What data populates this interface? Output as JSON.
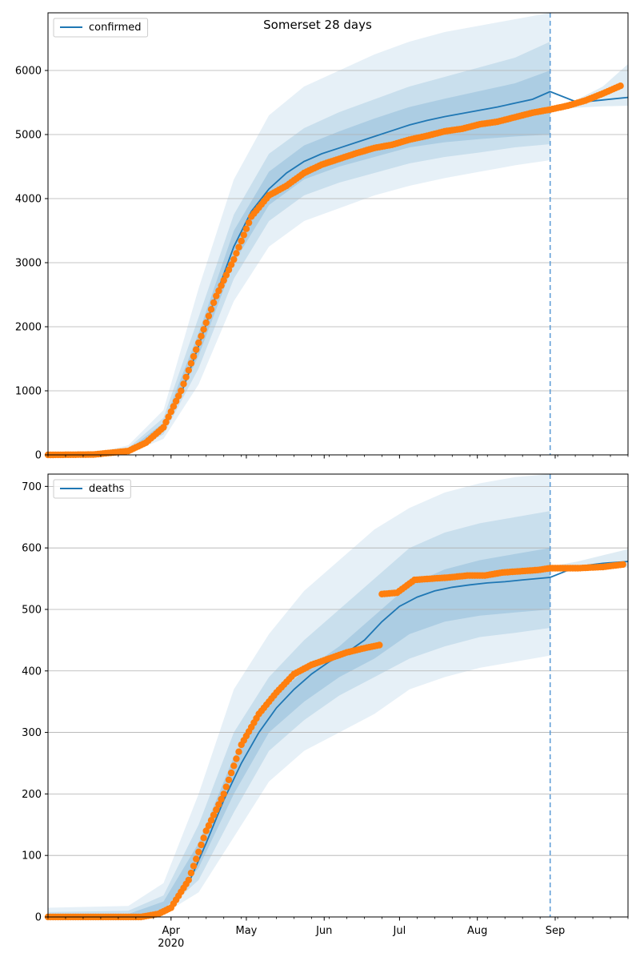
{
  "figure_title": "Somerset 28 days",
  "colors": {
    "model": "#1f77b4",
    "observed": "#ff7f0e",
    "band": "#1f77b4",
    "divider": "#5b9bd5",
    "grid": "#b0b0b0"
  },
  "x_axis": {
    "range": [
      "2020-02-12",
      "2020-09-30"
    ],
    "month_ticks": [
      {
        "date": "2020-04-01",
        "label": "Apr",
        "sublabel": "2020"
      },
      {
        "date": "2020-05-01",
        "label": "May",
        "sublabel": ""
      },
      {
        "date": "2020-06-01",
        "label": "Jun",
        "sublabel": ""
      },
      {
        "date": "2020-07-01",
        "label": "Jul",
        "sublabel": ""
      },
      {
        "date": "2020-08-01",
        "label": "Aug",
        "sublabel": ""
      },
      {
        "date": "2020-09-01",
        "label": "Sep",
        "sublabel": ""
      }
    ],
    "forecast_start": "2020-08-30"
  },
  "chart_data": [
    {
      "type": "line",
      "title": "Somerset 28 days",
      "legend": "confirmed",
      "legend_position": "top-left",
      "grid": "horizontal",
      "ylim": [
        0,
        6900
      ],
      "yticks": [
        0,
        1000,
        2000,
        3000,
        4000,
        5000,
        6000
      ],
      "series": [
        {
          "name": "confirmed",
          "kind": "model",
          "x": [
            "2020-02-12",
            "2020-03-01",
            "2020-03-15",
            "2020-03-22",
            "2020-03-29",
            "2020-04-05",
            "2020-04-12",
            "2020-04-19",
            "2020-04-26",
            "2020-05-03",
            "2020-05-10",
            "2020-05-17",
            "2020-05-24",
            "2020-05-31",
            "2020-06-07",
            "2020-06-14",
            "2020-06-21",
            "2020-06-28",
            "2020-07-05",
            "2020-07-12",
            "2020-07-19",
            "2020-07-26",
            "2020-08-02",
            "2020-08-09",
            "2020-08-16",
            "2020-08-23",
            "2020-08-30",
            "2020-09-10",
            "2020-09-20",
            "2020-09-30"
          ],
          "y": [
            0,
            5,
            60,
            180,
            430,
            950,
            1700,
            2500,
            3250,
            3800,
            4150,
            4400,
            4580,
            4700,
            4790,
            4880,
            4970,
            5060,
            5150,
            5220,
            5280,
            5330,
            5380,
            5430,
            5490,
            5550,
            5670,
            5500,
            5540,
            5580
          ]
        },
        {
          "name": "",
          "kind": "observed",
          "x": [
            "2020-02-12",
            "2020-03-01",
            "2020-03-15",
            "2020-03-22",
            "2020-03-29",
            "2020-04-05",
            "2020-04-12",
            "2020-04-19",
            "2020-04-26",
            "2020-05-03",
            "2020-05-10",
            "2020-05-17",
            "2020-05-24",
            "2020-05-31",
            "2020-06-07",
            "2020-06-14",
            "2020-06-21",
            "2020-06-28",
            "2020-07-05",
            "2020-07-12",
            "2020-07-19",
            "2020-07-26",
            "2020-08-02",
            "2020-08-09",
            "2020-08-16",
            "2020-08-23",
            "2020-08-30",
            "2020-09-06",
            "2020-09-13",
            "2020-09-20",
            "2020-09-27"
          ],
          "y": [
            0,
            5,
            60,
            190,
            430,
            1000,
            1750,
            2480,
            3050,
            3720,
            4050,
            4200,
            4400,
            4530,
            4620,
            4710,
            4790,
            4840,
            4920,
            4980,
            5050,
            5090,
            5160,
            5200,
            5270,
            5340,
            5390,
            5450,
            5530,
            5640,
            5760
          ]
        }
      ],
      "bands": [
        {
          "level": "outer",
          "x": [
            "2020-03-01",
            "2020-03-15",
            "2020-03-29",
            "2020-04-12",
            "2020-04-26",
            "2020-05-10",
            "2020-05-24",
            "2020-06-07",
            "2020-06-21",
            "2020-07-05",
            "2020-07-19",
            "2020-08-02",
            "2020-08-16",
            "2020-08-30"
          ],
          "lower": [
            0,
            20,
            250,
            1100,
            2400,
            3250,
            3650,
            3850,
            4050,
            4200,
            4320,
            4420,
            4520,
            4600
          ],
          "upper": [
            20,
            150,
            700,
            2600,
            4300,
            5300,
            5750,
            6000,
            6250,
            6450,
            6600,
            6700,
            6800,
            6900
          ]
        },
        {
          "level": "middle",
          "x": [
            "2020-03-01",
            "2020-03-15",
            "2020-03-29",
            "2020-04-12",
            "2020-04-26",
            "2020-05-10",
            "2020-05-24",
            "2020-06-07",
            "2020-06-21",
            "2020-07-05",
            "2020-07-19",
            "2020-08-02",
            "2020-08-16",
            "2020-08-30"
          ],
          "lower": [
            0,
            35,
            320,
            1350,
            2750,
            3650,
            4050,
            4250,
            4400,
            4550,
            4650,
            4720,
            4800,
            4850
          ],
          "upper": [
            12,
            110,
            580,
            2150,
            3750,
            4700,
            5100,
            5350,
            5550,
            5750,
            5900,
            6050,
            6200,
            6450
          ]
        },
        {
          "level": "inner",
          "x": [
            "2020-03-01",
            "2020-03-15",
            "2020-03-29",
            "2020-04-12",
            "2020-04-26",
            "2020-05-10",
            "2020-05-24",
            "2020-06-07",
            "2020-06-21",
            "2020-07-05",
            "2020-07-19",
            "2020-08-02",
            "2020-08-16",
            "2020-08-30"
          ],
          "lower": [
            2,
            48,
            380,
            1550,
            3000,
            3900,
            4300,
            4500,
            4650,
            4800,
            4880,
            4930,
            4970,
            5000
          ],
          "upper": [
            8,
            80,
            500,
            1900,
            3500,
            4420,
            4830,
            5050,
            5250,
            5430,
            5560,
            5680,
            5800,
            6000
          ]
        },
        {
          "level": "forecast",
          "x": [
            "2020-08-30",
            "2020-09-10",
            "2020-09-20",
            "2020-09-30"
          ],
          "lower": [
            5380,
            5420,
            5440,
            5450
          ],
          "upper": [
            5420,
            5550,
            5750,
            6100
          ]
        }
      ]
    },
    {
      "type": "line",
      "legend": "deaths",
      "legend_position": "top-left",
      "grid": "horizontal",
      "ylim": [
        0,
        720
      ],
      "yticks": [
        0,
        100,
        200,
        300,
        400,
        500,
        600,
        700
      ],
      "series": [
        {
          "name": "deaths",
          "kind": "model",
          "x": [
            "2020-02-12",
            "2020-03-15",
            "2020-03-25",
            "2020-04-01",
            "2020-04-08",
            "2020-04-15",
            "2020-04-22",
            "2020-04-29",
            "2020-05-06",
            "2020-05-13",
            "2020-05-20",
            "2020-05-27",
            "2020-06-03",
            "2020-06-10",
            "2020-06-17",
            "2020-06-24",
            "2020-07-01",
            "2020-07-08",
            "2020-07-15",
            "2020-07-22",
            "2020-07-29",
            "2020-08-05",
            "2020-08-12",
            "2020-08-19",
            "2020-08-30",
            "2020-09-10",
            "2020-09-20",
            "2020-09-30"
          ],
          "y": [
            0,
            0,
            2,
            15,
            55,
            120,
            190,
            250,
            300,
            340,
            370,
            395,
            415,
            430,
            450,
            480,
            505,
            520,
            530,
            536,
            540,
            543,
            545,
            548,
            552,
            570,
            575,
            578
          ]
        },
        {
          "name": "",
          "kind": "observed",
          "x": [
            "2020-02-12",
            "2020-03-20",
            "2020-03-27",
            "2020-04-01",
            "2020-04-08",
            "2020-04-15",
            "2020-04-22",
            "2020-04-29",
            "2020-05-06",
            "2020-05-13",
            "2020-05-20",
            "2020-05-27",
            "2020-06-03",
            "2020-06-10",
            "2020-06-17",
            "2020-06-23",
            "2020-06-24",
            "2020-06-30",
            "2020-07-07",
            "2020-07-14",
            "2020-07-21",
            "2020-07-28",
            "2020-08-04",
            "2020-08-11",
            "2020-08-18",
            "2020-08-25",
            "2020-08-30",
            "2020-09-10",
            "2020-09-20",
            "2020-09-28"
          ],
          "y": [
            0,
            0,
            5,
            15,
            60,
            140,
            200,
            280,
            330,
            365,
            395,
            410,
            420,
            430,
            437,
            442,
            525,
            527,
            548,
            550,
            552,
            555,
            555,
            560,
            562,
            564,
            567,
            567,
            569,
            573
          ]
        }
      ],
      "bands": [
        {
          "level": "outer",
          "x": [
            "2020-02-12",
            "2020-03-15",
            "2020-03-29",
            "2020-04-12",
            "2020-04-26",
            "2020-05-10",
            "2020-05-24",
            "2020-06-07",
            "2020-06-21",
            "2020-07-05",
            "2020-07-19",
            "2020-08-02",
            "2020-08-16",
            "2020-08-30"
          ],
          "lower": [
            0,
            0,
            5,
            40,
            130,
            220,
            270,
            300,
            330,
            370,
            390,
            405,
            415,
            425
          ],
          "upper": [
            15,
            18,
            55,
            200,
            370,
            460,
            530,
            580,
            630,
            665,
            690,
            705,
            715,
            720
          ]
        },
        {
          "level": "middle",
          "x": [
            "2020-02-12",
            "2020-03-15",
            "2020-03-29",
            "2020-04-12",
            "2020-04-26",
            "2020-05-10",
            "2020-05-24",
            "2020-06-07",
            "2020-06-21",
            "2020-07-05",
            "2020-07-19",
            "2020-08-02",
            "2020-08-16",
            "2020-08-30"
          ],
          "lower": [
            0,
            0,
            8,
            60,
            170,
            270,
            320,
            360,
            390,
            420,
            440,
            455,
            462,
            470
          ],
          "upper": [
            8,
            10,
            35,
            150,
            300,
            390,
            450,
            500,
            550,
            600,
            625,
            640,
            650,
            660
          ]
        },
        {
          "level": "inner",
          "x": [
            "2020-02-12",
            "2020-03-15",
            "2020-03-29",
            "2020-04-12",
            "2020-04-26",
            "2020-05-10",
            "2020-05-24",
            "2020-06-07",
            "2020-06-21",
            "2020-07-05",
            "2020-07-19",
            "2020-08-02",
            "2020-08-16",
            "2020-08-30"
          ],
          "lower": [
            0,
            0,
            10,
            80,
            200,
            300,
            350,
            390,
            420,
            460,
            480,
            490,
            495,
            500
          ],
          "upper": [
            4,
            5,
            25,
            120,
            260,
            350,
            400,
            440,
            490,
            540,
            565,
            580,
            590,
            600
          ]
        },
        {
          "level": "forecast",
          "x": [
            "2020-08-30",
            "2020-09-10",
            "2020-09-20",
            "2020-09-30"
          ],
          "lower": [
            565,
            565,
            567,
            568
          ],
          "upper": [
            570,
            578,
            588,
            598
          ]
        }
      ]
    }
  ]
}
